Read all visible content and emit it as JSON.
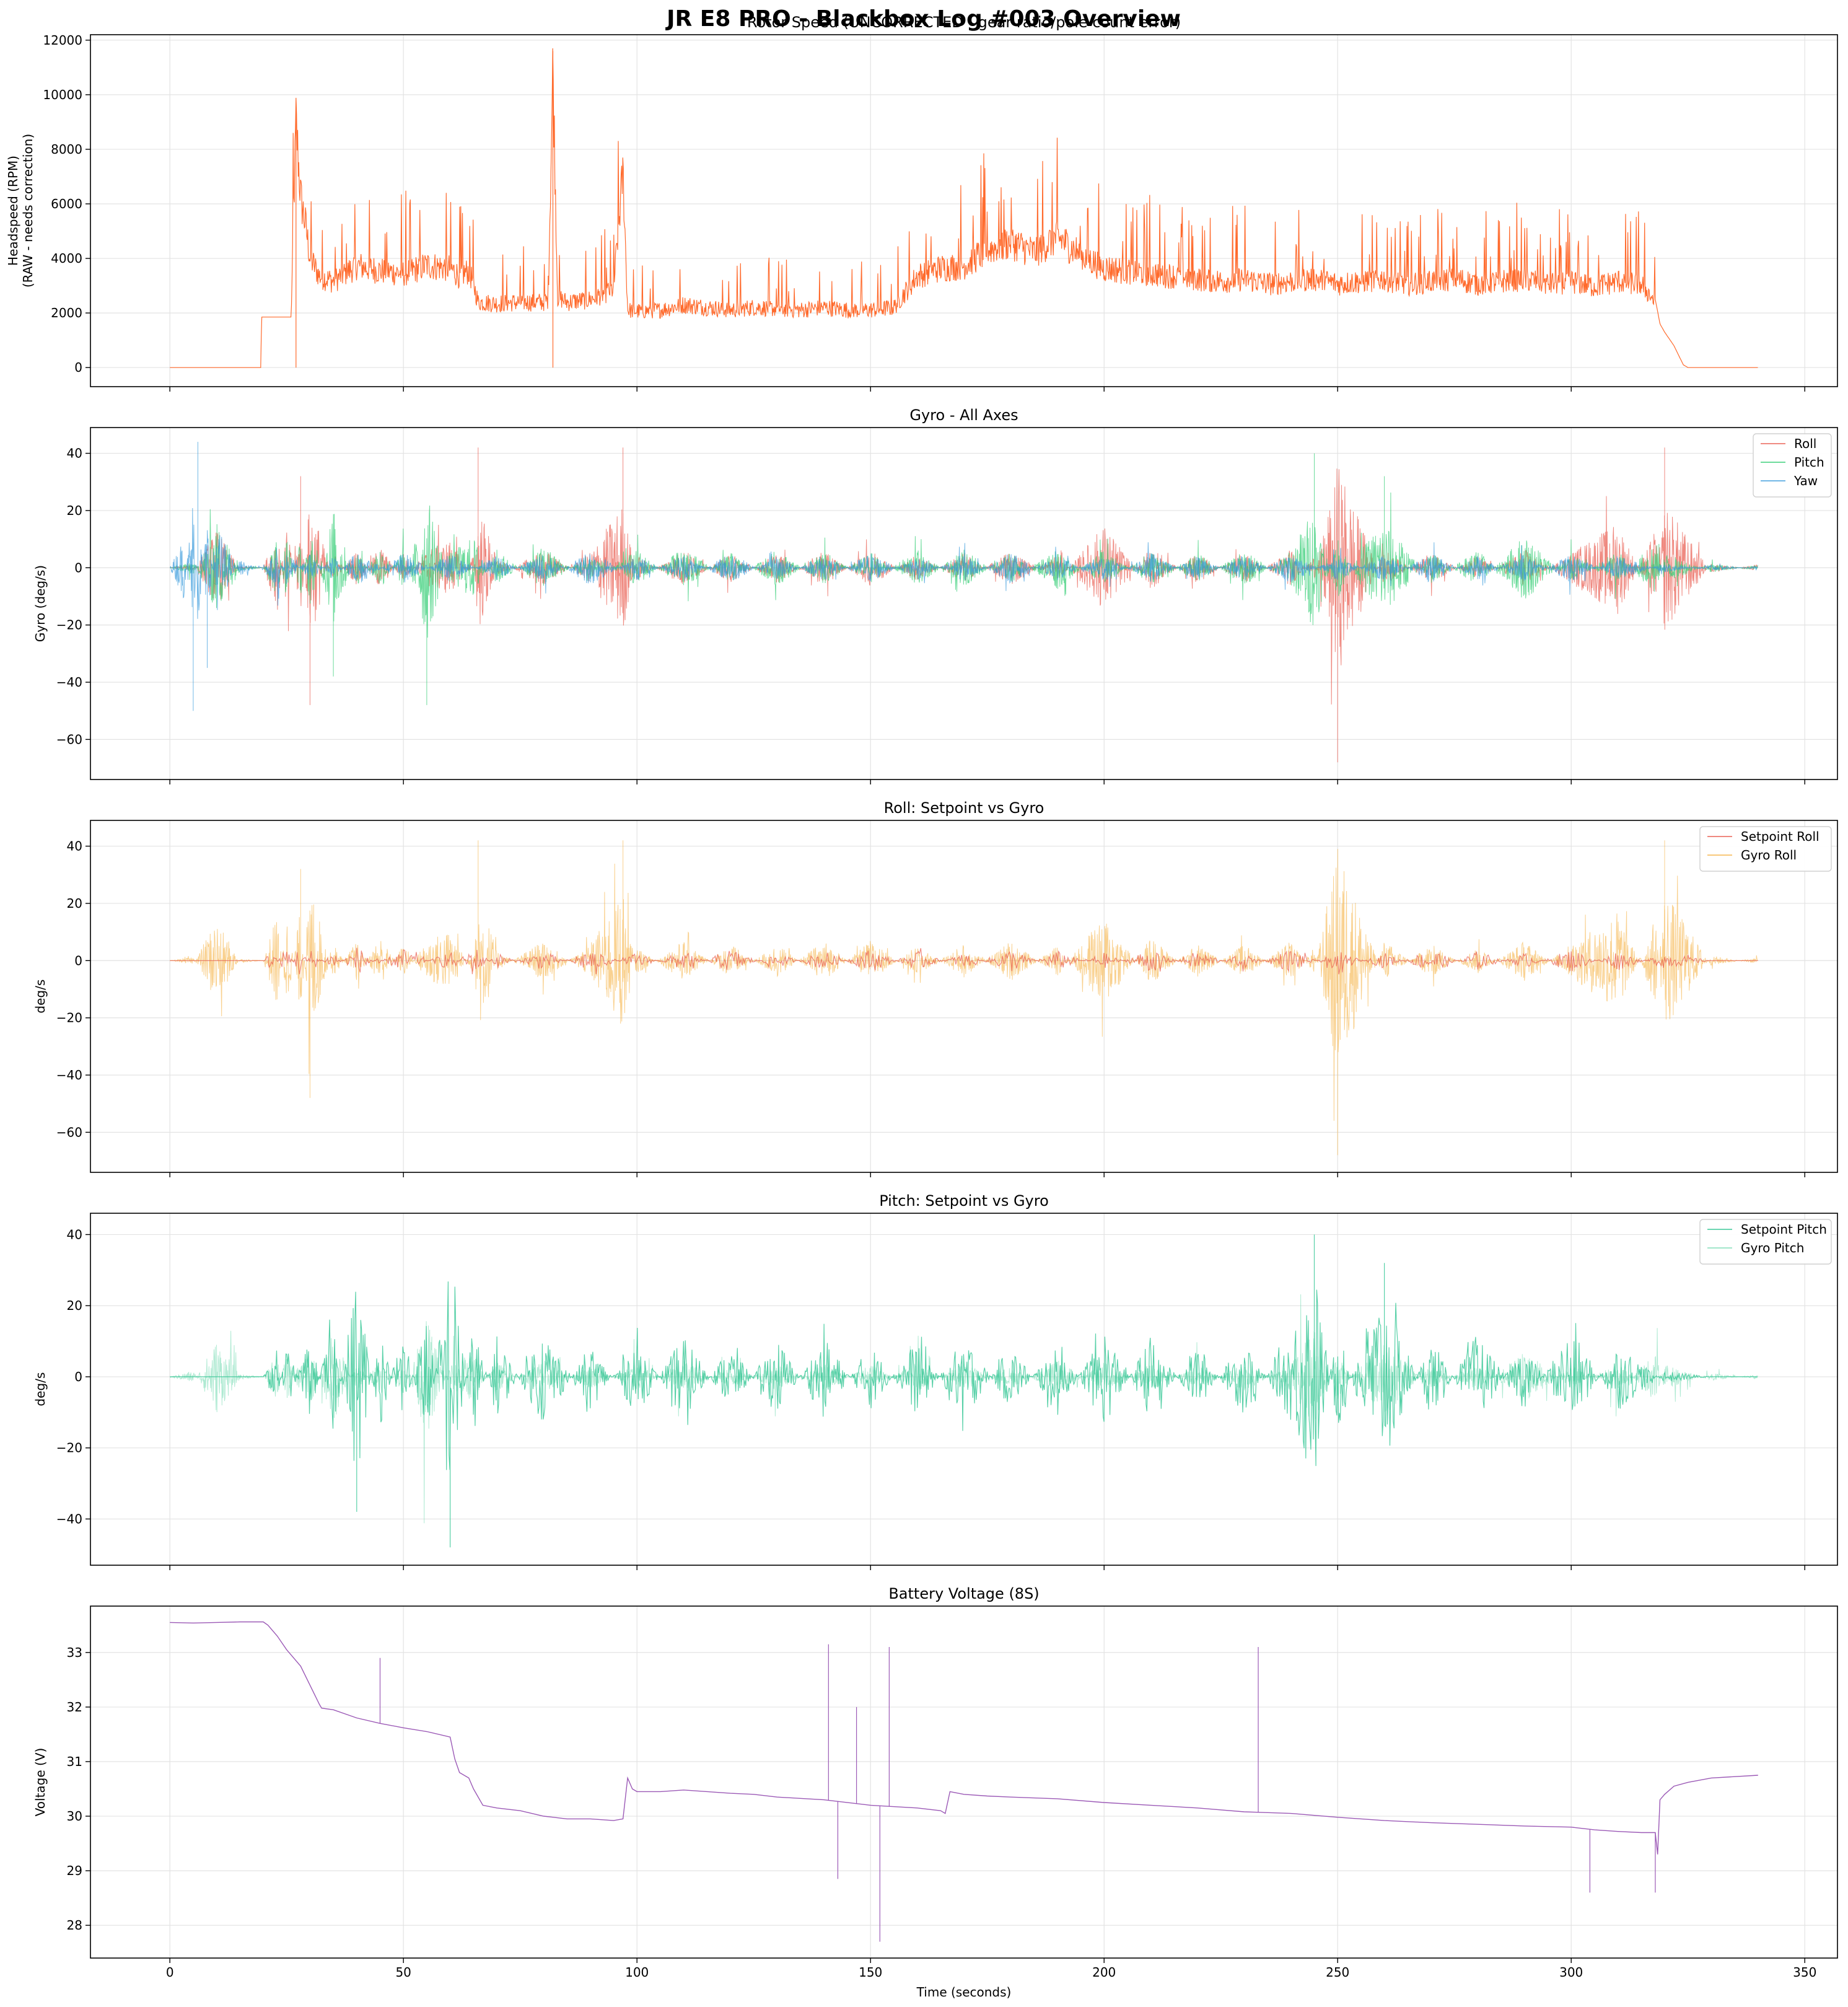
{
  "figure": {
    "title": "JR E8 PRO - Blackbox Log #003 Overview",
    "xlabel": "Time (seconds)",
    "x_ticks": [
      "0",
      "50",
      "100",
      "150",
      "200",
      "250",
      "300",
      "350"
    ]
  },
  "chart_data": [
    {
      "type": "line",
      "title": "Rotor Speed (UNCORRECTED - gear ratio/pole count error)",
      "ylabel_lines": [
        "Headspeed (RPM)",
        "(RAW - needs correction)"
      ],
      "xlim": [
        -17,
        357
      ],
      "ylim": [
        -700,
        12200
      ],
      "y_ticks": [
        0,
        2000,
        4000,
        6000,
        8000,
        10000,
        12000
      ],
      "grid": true,
      "legend": "none",
      "series": [
        {
          "color": "#ff6a2c",
          "sampled": true,
          "x": [
            0,
            19.5,
            19.6,
            26,
            26.2,
            27,
            28,
            29,
            30,
            32,
            35,
            40,
            45,
            50,
            55,
            60,
            62,
            64,
            65,
            66,
            70,
            75,
            80,
            81,
            82,
            83,
            85,
            90,
            95,
            97,
            98,
            100,
            105,
            110,
            115,
            120,
            125,
            130,
            135,
            140,
            145,
            150,
            155,
            160,
            165,
            170,
            175,
            180,
            185,
            190,
            195,
            200,
            205,
            210,
            215,
            220,
            225,
            230,
            235,
            240,
            245,
            250,
            255,
            260,
            265,
            270,
            275,
            280,
            285,
            290,
            295,
            300,
            305,
            310,
            315,
            318,
            319,
            320,
            322,
            324,
            325,
            330,
            340
          ],
          "y": [
            0,
            0,
            1850,
            1850,
            4000,
            9400,
            6500,
            5500,
            4200,
            3500,
            3300,
            3900,
            3700,
            3600,
            3900,
            3800,
            3500,
            3700,
            3200,
            2500,
            2450,
            2500,
            2500,
            2600,
            11600,
            2700,
            2500,
            2600,
            3000,
            7500,
            2200,
            2150,
            2200,
            2400,
            2300,
            2200,
            2300,
            2250,
            2200,
            2300,
            2200,
            2200,
            2300,
            3500,
            3800,
            3900,
            4500,
            4800,
            4400,
            5000,
            4300,
            3800,
            3700,
            3600,
            3500,
            3400,
            3300,
            3400,
            3200,
            3300,
            3400,
            3200,
            3300,
            3400,
            3200,
            3300,
            3400,
            3200,
            3300,
            3400,
            3200,
            3300,
            3100,
            3300,
            3200,
            2500,
            1600,
            1300,
            800,
            100,
            0,
            0,
            0
          ]
        }
      ]
    },
    {
      "type": "line",
      "title": "Gyro - All Axes",
      "ylabel_lines": [
        "Gyro (deg/s)"
      ],
      "xlim": [
        -17,
        357
      ],
      "ylim": [
        -74,
        49
      ],
      "y_ticks": [
        -60,
        -40,
        -20,
        0,
        20,
        40
      ],
      "grid": true,
      "legend": "top-right",
      "series": [
        {
          "name": "Roll",
          "color": "#e8574a",
          "sampled": true,
          "x": [
            0,
            5,
            10,
            15,
            20,
            23,
            25,
            28,
            30,
            35,
            40,
            45,
            50,
            55,
            60,
            65,
            66,
            70,
            80,
            90,
            97,
            100,
            110,
            120,
            130,
            140,
            150,
            160,
            170,
            180,
            190,
            200,
            210,
            220,
            230,
            240,
            245,
            250,
            260,
            270,
            280,
            290,
            300,
            310,
            318,
            320,
            330,
            340
          ],
          "y": [
            0,
            2,
            -25,
            1,
            0,
            28,
            -30,
            32,
            -48,
            10,
            -12,
            15,
            -10,
            12,
            18,
            -8,
            42,
            6,
            -12,
            10,
            42,
            -8,
            12,
            -10,
            10,
            -12,
            12,
            -9,
            10,
            -12,
            9,
            -28,
            14,
            -10,
            10,
            -12,
            8,
            -68,
            12,
            -10,
            8,
            -12,
            10,
            30,
            -25,
            42,
            -3,
            2
          ]
        },
        {
          "name": "Pitch",
          "color": "#2ecc71",
          "sampled": true,
          "x": [
            0,
            5,
            10,
            15,
            20,
            23,
            25,
            28,
            30,
            35,
            40,
            45,
            50,
            55,
            60,
            65,
            70,
            80,
            90,
            100,
            110,
            120,
            130,
            140,
            150,
            160,
            170,
            180,
            190,
            200,
            210,
            220,
            230,
            240,
            245,
            250,
            255,
            260,
            270,
            280,
            290,
            300,
            310,
            318,
            320,
            330,
            340
          ],
          "y": [
            0,
            -5,
            30,
            2,
            0,
            -20,
            22,
            -18,
            25,
            -38,
            12,
            -15,
            14,
            -48,
            10,
            20,
            -12,
            14,
            -10,
            12,
            -14,
            10,
            -12,
            11,
            -10,
            12,
            -12,
            10,
            -14,
            12,
            -11,
            10,
            -12,
            11,
            40,
            -20,
            12,
            32,
            -10,
            12,
            -22,
            10,
            -12,
            20,
            -10,
            3,
            -2
          ]
        },
        {
          "name": "Yaw",
          "color": "#3498db",
          "sampled": true,
          "x": [
            0,
            3,
            5,
            6,
            8,
            10,
            15,
            20,
            23,
            25,
            30,
            35,
            40,
            50,
            60,
            70,
            80,
            90,
            100,
            110,
            120,
            130,
            140,
            150,
            160,
            170,
            180,
            190,
            200,
            210,
            220,
            230,
            240,
            250,
            260,
            270,
            280,
            290,
            300,
            310,
            320,
            330,
            340
          ],
          "y": [
            0,
            20,
            -50,
            44,
            -35,
            28,
            -5,
            2,
            -15,
            12,
            -10,
            8,
            -12,
            10,
            -9,
            8,
            -10,
            12,
            -8,
            9,
            -10,
            8,
            -9,
            10,
            -8,
            9,
            -10,
            8,
            -9,
            10,
            -8,
            9,
            -10,
            8,
            -9,
            10,
            -8,
            9,
            -10,
            8,
            -3,
            2,
            -1
          ]
        }
      ]
    },
    {
      "type": "line",
      "title": "Roll: Setpoint vs Gyro",
      "ylabel_lines": [
        "deg/s"
      ],
      "xlim": [
        -17,
        357
      ],
      "ylim": [
        -74,
        49
      ],
      "y_ticks": [
        -60,
        -40,
        -20,
        0,
        20,
        40
      ],
      "grid": true,
      "legend": "top-right",
      "series": [
        {
          "name": "Setpoint Roll",
          "color": "#e8574a",
          "sampled": true,
          "x": [
            0,
            10,
            20,
            22,
            25,
            28,
            30,
            35,
            40,
            50,
            60,
            65,
            70,
            80,
            90,
            100,
            110,
            120,
            130,
            140,
            150,
            160,
            170,
            180,
            190,
            200,
            210,
            220,
            230,
            240,
            250,
            260,
            270,
            280,
            290,
            300,
            310,
            320,
            330,
            340
          ],
          "y": [
            0,
            0,
            0,
            6,
            -8,
            10,
            -6,
            5,
            -7,
            6,
            -5,
            8,
            -4,
            5,
            -6,
            4,
            -5,
            6,
            -4,
            5,
            -6,
            5,
            -4,
            6,
            -5,
            4,
            -6,
            5,
            -4,
            6,
            -5,
            4,
            -6,
            5,
            -4,
            6,
            -5,
            4,
            0,
            0
          ]
        }
      ]
    },
    {
      "type": "line",
      "title": "Pitch: Setpoint vs Gyro",
      "ylabel_lines": [
        "deg/s"
      ],
      "xlim": [
        -17,
        357
      ],
      "ylim": [
        -53,
        46
      ],
      "y_ticks": [
        -40,
        -20,
        0,
        20,
        40
      ],
      "grid": true,
      "legend": "top-right",
      "series": [
        {
          "name": "Setpoint Pitch",
          "color": "#2dc491",
          "sampled": true,
          "x": [
            0,
            10,
            20,
            23,
            25,
            30,
            35,
            40,
            45,
            50,
            55,
            60,
            65,
            70,
            80,
            90,
            100,
            110,
            120,
            130,
            140,
            150,
            160,
            170,
            180,
            190,
            200,
            210,
            220,
            230,
            240,
            245,
            250,
            255,
            260,
            270,
            280,
            290,
            300,
            310,
            320,
            330,
            340
          ],
          "y": [
            0,
            0,
            0,
            -10,
            12,
            -15,
            22,
            -38,
            18,
            -20,
            25,
            -48,
            20,
            -15,
            18,
            -12,
            14,
            -16,
            12,
            -14,
            15,
            -12,
            14,
            -16,
            12,
            -14,
            18,
            -15,
            12,
            -14,
            16,
            40,
            -20,
            15,
            32,
            -14,
            16,
            -12,
            18,
            -12,
            2,
            0,
            0
          ]
        }
      ]
    },
    {
      "type": "line",
      "title": "Battery Voltage (8S)",
      "ylabel_lines": [
        "Voltage (V)"
      ],
      "xlim": [
        -17,
        357
      ],
      "ylim": [
        27.4,
        33.85
      ],
      "y_ticks": [
        28,
        29,
        30,
        31,
        32,
        33
      ],
      "grid": true,
      "legend": "none",
      "series": [
        {
          "color": "#9b59b6",
          "x": [
            0,
            5,
            10,
            15,
            20,
            21,
            23,
            25,
            28,
            30,
            32,
            32.5,
            35,
            40,
            45,
            50,
            55,
            60,
            61,
            62,
            64,
            65,
            67,
            70,
            75,
            80,
            85,
            90,
            95,
            97,
            98,
            99,
            100,
            105,
            110,
            115,
            120,
            125,
            130,
            140,
            150,
            160,
            165,
            166,
            167,
            170,
            175,
            180,
            190,
            200,
            210,
            220,
            230,
            240,
            250,
            260,
            270,
            280,
            290,
            300,
            305,
            310,
            315,
            318,
            318.5,
            319,
            320,
            322,
            325,
            330,
            340
          ],
          "y": [
            33.55,
            33.54,
            33.55,
            33.56,
            33.56,
            33.5,
            33.3,
            33.05,
            32.75,
            32.4,
            32.05,
            31.98,
            31.95,
            31.8,
            31.7,
            31.62,
            31.55,
            31.45,
            31.05,
            30.8,
            30.7,
            30.5,
            30.2,
            30.15,
            30.1,
            30.0,
            29.95,
            29.95,
            29.92,
            29.95,
            30.7,
            30.5,
            30.45,
            30.45,
            30.48,
            30.45,
            30.42,
            30.4,
            30.35,
            30.3,
            30.2,
            30.15,
            30.1,
            30.05,
            30.45,
            30.4,
            30.37,
            30.35,
            30.32,
            30.25,
            30.2,
            30.15,
            30.08,
            30.05,
            29.98,
            29.92,
            29.88,
            29.85,
            29.82,
            29.8,
            29.75,
            29.72,
            29.7,
            29.7,
            29.3,
            30.3,
            30.4,
            30.55,
            30.62,
            30.7,
            30.75
          ]
        }
      ]
    }
  ]
}
